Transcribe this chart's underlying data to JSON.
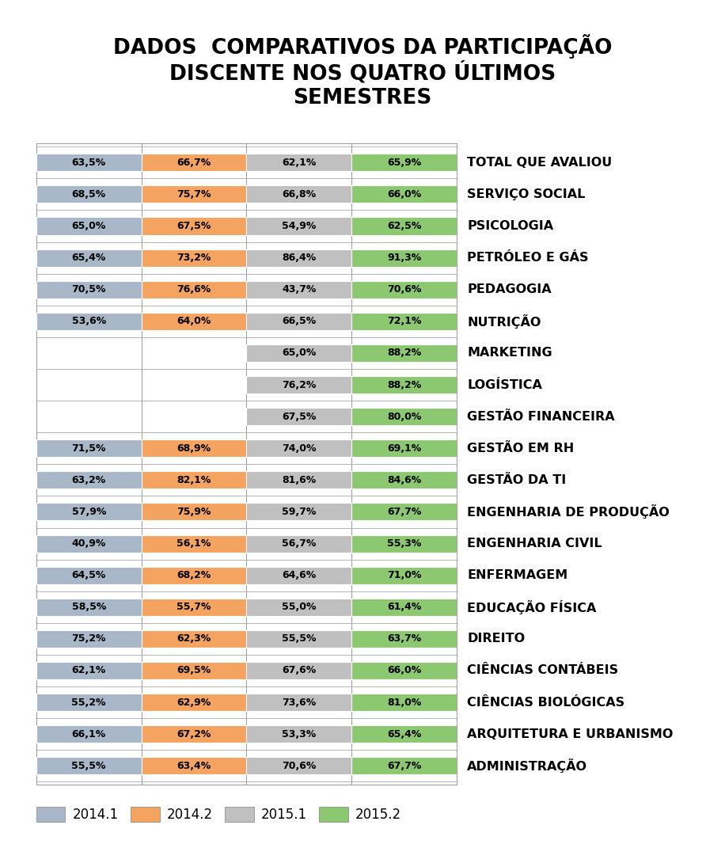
{
  "title": "DADOS  COMPARATIVOS DA PARTICIPAÇÃO\nDISCENTE NOS QUATRO ÚLTIMOS\nSEMESTRES",
  "categories": [
    "TOTAL QUE AVALIOU",
    "SERVIÇO SOCIAL",
    "PSICOLOGIA",
    "PETRÓLEO E GÁS",
    "PEDAGOGIA",
    "NUTRIÇÃO",
    "MARKETING",
    "LOGÍSTICA",
    "GESTÃO FINANCEIRA",
    "GESTÃO EM RH",
    "GESTÃO DA TI",
    "ENGENHARIA DE PRODUÇÃO",
    "ENGENHARIA CIVIL",
    "ENFERMAGEM",
    "EDUCAÇÃO FÍSICA",
    "DIREITO",
    "CIÊNCIAS CONTÁBEIS",
    "CIÊNCIAS BIOLÓGICAS",
    "ARQUITETURA E URBANISMO",
    "ADMINISTRAÇÃO"
  ],
  "series_2014_1": [
    63.5,
    68.5,
    65.0,
    65.4,
    70.5,
    53.6,
    null,
    null,
    null,
    71.5,
    63.2,
    57.9,
    40.9,
    64.5,
    58.5,
    75.2,
    62.1,
    55.2,
    66.1,
    55.5
  ],
  "series_2014_2": [
    66.7,
    75.7,
    67.5,
    73.2,
    76.6,
    64.0,
    null,
    null,
    null,
    68.9,
    82.1,
    75.9,
    56.1,
    68.2,
    55.7,
    62.3,
    69.5,
    62.9,
    67.2,
    63.4
  ],
  "series_2015_1": [
    62.1,
    66.8,
    54.9,
    86.4,
    43.7,
    66.5,
    65.0,
    76.2,
    67.5,
    74.0,
    81.6,
    59.7,
    56.7,
    64.6,
    55.0,
    55.5,
    67.6,
    73.6,
    53.3,
    70.6
  ],
  "series_2015_2": [
    65.9,
    66.0,
    62.5,
    91.3,
    70.6,
    72.1,
    88.2,
    88.2,
    80.0,
    69.1,
    84.6,
    67.7,
    55.3,
    71.0,
    61.4,
    63.7,
    66.0,
    81.0,
    65.4,
    67.7
  ],
  "color_2014_1": "#a8b8c8",
  "color_2014_2": "#f4a460",
  "color_2015_1": "#c0c0c0",
  "color_2015_2": "#8cc870",
  "label_2014_1": "2014.1",
  "label_2014_2": "2014.2",
  "label_2015_1": "2015.1",
  "label_2015_2": "2015.2",
  "background_color": "#ffffff",
  "bar_height": 0.55,
  "title_fontsize": 19,
  "label_fontsize": 9.0,
  "cat_fontsize": 11.5,
  "legend_fontsize": 12
}
